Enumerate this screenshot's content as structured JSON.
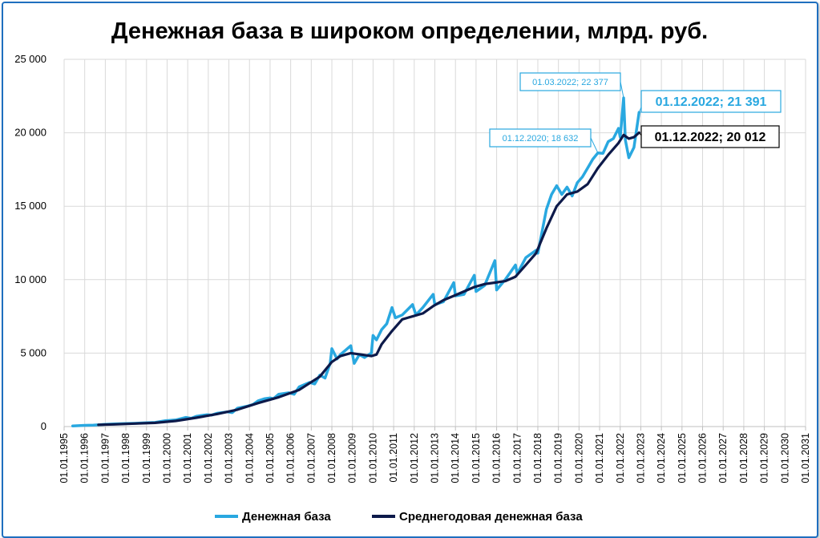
{
  "chart_data": {
    "type": "line",
    "title": "Денежная база в широком определении, млрд. руб.",
    "xlabel": "",
    "ylabel": "",
    "ylim": [
      0,
      25000
    ],
    "yticks": [
      0,
      5000,
      10000,
      15000,
      20000,
      25000
    ],
    "ytick_labels": [
      "0",
      "5 000",
      "10 000",
      "15 000",
      "20 000",
      "25 000"
    ],
    "xlim": [
      1995,
      2031
    ],
    "xtick_labels": [
      "01.01.1995",
      "01.01.1996",
      "01.01.1997",
      "01.01.1998",
      "01.01.1999",
      "01.01.2000",
      "01.01.2001",
      "01.01.2002",
      "01.01.2003",
      "01.01.2004",
      "01.01.2005",
      "01.01.2006",
      "01.01.2007",
      "01.01.2008",
      "01.01.2009",
      "01.01.2010",
      "01.01.2011",
      "01.01.2012",
      "01.01.2013",
      "01.01.2014",
      "01.01.2015",
      "01.01.2016",
      "01.01.2017",
      "01.01.2018",
      "01.01.2019",
      "01.01.2020",
      "01.01.2021",
      "01.01.2022",
      "01.01.2023",
      "01.01.2024",
      "01.01.2025",
      "01.01.2026",
      "01.01.2027",
      "01.01.2028",
      "01.01.2029",
      "01.01.2030",
      "01.01.2031"
    ],
    "grid": true,
    "legend_position": "bottom",
    "series": [
      {
        "name": "Денежная база",
        "color": "#29a8e0",
        "points": [
          [
            "1995-06",
            40
          ],
          [
            "1996-01",
            80
          ],
          [
            "1996-06",
            100
          ],
          [
            "1997-01",
            150
          ],
          [
            "1997-06",
            180
          ],
          [
            "1998-01",
            200
          ],
          [
            "1998-06",
            220
          ],
          [
            "1998-12",
            250
          ],
          [
            "1999-06",
            280
          ],
          [
            "1999-12",
            400
          ],
          [
            "2000-06",
            450
          ],
          [
            "2000-12",
            620
          ],
          [
            "2001-03",
            560
          ],
          [
            "2001-06",
            700
          ],
          [
            "2001-12",
            800
          ],
          [
            "2002-03",
            780
          ],
          [
            "2002-06",
            900
          ],
          [
            "2002-12",
            1000
          ],
          [
            "2003-03",
            950
          ],
          [
            "2003-06",
            1250
          ],
          [
            "2003-12",
            1400
          ],
          [
            "2004-03",
            1500
          ],
          [
            "2004-06",
            1750
          ],
          [
            "2004-10",
            1900
          ],
          [
            "2005-01",
            1950
          ],
          [
            "2005-03",
            1900
          ],
          [
            "2005-06",
            2200
          ],
          [
            "2005-12",
            2300
          ],
          [
            "2006-03",
            2200
          ],
          [
            "2006-06",
            2700
          ],
          [
            "2006-12",
            3000
          ],
          [
            "2007-03",
            2900
          ],
          [
            "2007-06",
            3500
          ],
          [
            "2007-09",
            3300
          ],
          [
            "2007-12",
            4300
          ],
          [
            "2008-01",
            5300
          ],
          [
            "2008-04",
            4600
          ],
          [
            "2008-06",
            4900
          ],
          [
            "2008-09",
            5200
          ],
          [
            "2008-12",
            5500
          ],
          [
            "2009-02",
            4300
          ],
          [
            "2009-05",
            4900
          ],
          [
            "2009-08",
            4700
          ],
          [
            "2009-12",
            5000
          ],
          [
            "2010-01",
            6200
          ],
          [
            "2010-03",
            5900
          ],
          [
            "2010-06",
            6600
          ],
          [
            "2010-09",
            7000
          ],
          [
            "2010-12",
            8100
          ],
          [
            "2011-02",
            7400
          ],
          [
            "2011-06",
            7600
          ],
          [
            "2011-12",
            8300
          ],
          [
            "2012-02",
            7600
          ],
          [
            "2012-06",
            8100
          ],
          [
            "2012-12",
            9000
          ],
          [
            "2013-01",
            8300
          ],
          [
            "2013-06",
            8500
          ],
          [
            "2013-12",
            9800
          ],
          [
            "2014-01",
            8900
          ],
          [
            "2014-06",
            9000
          ],
          [
            "2014-12",
            10300
          ],
          [
            "2015-01",
            9200
          ],
          [
            "2015-06",
            9600
          ],
          [
            "2015-12",
            11300
          ],
          [
            "2016-01",
            9300
          ],
          [
            "2016-06",
            10000
          ],
          [
            "2016-12",
            11000
          ],
          [
            "2017-01",
            10400
          ],
          [
            "2017-06",
            11500
          ],
          [
            "2017-12",
            12000
          ],
          [
            "2018-01",
            11800
          ],
          [
            "2018-03",
            13000
          ],
          [
            "2018-06",
            14800
          ],
          [
            "2018-09",
            15800
          ],
          [
            "2018-12",
            16400
          ],
          [
            "2019-03",
            15800
          ],
          [
            "2019-06",
            16300
          ],
          [
            "2019-09",
            15700
          ],
          [
            "2019-12",
            16600
          ],
          [
            "2020-03",
            17000
          ],
          [
            "2020-06",
            17600
          ],
          [
            "2020-09",
            18200
          ],
          [
            "2020-12",
            18632
          ],
          [
            "2021-03",
            18600
          ],
          [
            "2021-06",
            19400
          ],
          [
            "2021-09",
            19600
          ],
          [
            "2021-12",
            20300
          ],
          [
            "2022-01",
            19700
          ],
          [
            "2022-03",
            22377
          ],
          [
            "2022-04",
            19500
          ],
          [
            "2022-06",
            18300
          ],
          [
            "2022-09",
            19000
          ],
          [
            "2022-12",
            21391
          ]
        ]
      },
      {
        "name": "Среднегодовая денежная база",
        "color": "#0d1a4a",
        "points": [
          [
            "1996-09",
            120
          ],
          [
            "1997-06",
            150
          ],
          [
            "1998-06",
            200
          ],
          [
            "1999-06",
            250
          ],
          [
            "2000-06",
            380
          ],
          [
            "2001-06",
            600
          ],
          [
            "2002-06",
            850
          ],
          [
            "2003-06",
            1150
          ],
          [
            "2004-06",
            1600
          ],
          [
            "2005-06",
            2000
          ],
          [
            "2006-06",
            2500
          ],
          [
            "2007-06",
            3400
          ],
          [
            "2008-01",
            4400
          ],
          [
            "2008-06",
            4800
          ],
          [
            "2008-12",
            5000
          ],
          [
            "2009-06",
            4900
          ],
          [
            "2009-12",
            4800
          ],
          [
            "2010-03",
            4900
          ],
          [
            "2010-06",
            5600
          ],
          [
            "2010-12",
            6500
          ],
          [
            "2011-06",
            7300
          ],
          [
            "2011-12",
            7500
          ],
          [
            "2012-06",
            7700
          ],
          [
            "2012-12",
            8200
          ],
          [
            "2013-06",
            8600
          ],
          [
            "2013-12",
            8900
          ],
          [
            "2014-06",
            9200
          ],
          [
            "2014-12",
            9500
          ],
          [
            "2015-06",
            9700
          ],
          [
            "2015-12",
            9800
          ],
          [
            "2016-06",
            9900
          ],
          [
            "2016-12",
            10200
          ],
          [
            "2017-06",
            11000
          ],
          [
            "2017-12",
            11800
          ],
          [
            "2018-06",
            13500
          ],
          [
            "2018-12",
            15000
          ],
          [
            "2019-06",
            15800
          ],
          [
            "2019-12",
            16000
          ],
          [
            "2020-06",
            16500
          ],
          [
            "2020-12",
            17600
          ],
          [
            "2021-06",
            18500
          ],
          [
            "2021-12",
            19300
          ],
          [
            "2022-03",
            19850
          ],
          [
            "2022-06",
            19600
          ],
          [
            "2022-09",
            19700
          ],
          [
            "2022-12",
            20012
          ]
        ]
      }
    ],
    "annotations": [
      {
        "text": "01.03.2022;  22 377",
        "date": "2022-03",
        "value": 22377,
        "style": "small-blue"
      },
      {
        "text": "01.12.2020;  18 632",
        "date": "2020-12",
        "value": 18632,
        "style": "small-blue"
      },
      {
        "text": "01.12.2022;  21 391",
        "date": "2022-12",
        "value": 21391,
        "style": "big-blue"
      },
      {
        "text": "01.12.2022;  20 012",
        "date": "2022-12",
        "value": 20012,
        "style": "big-dark"
      }
    ]
  }
}
